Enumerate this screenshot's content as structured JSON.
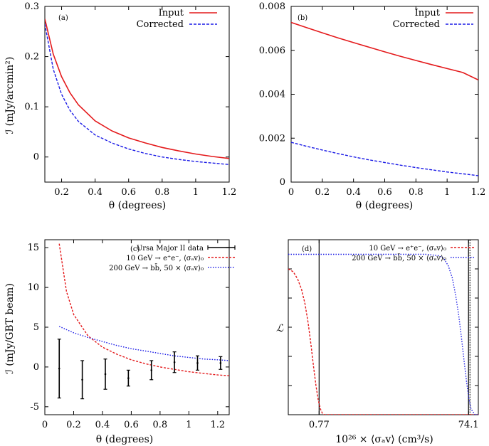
{
  "chart_data": [
    {
      "panel": "a",
      "panel_label": "(a)",
      "type": "line",
      "xlabel": "θ (degrees)",
      "ylabel": "ℐ (mJy/arcmin²)",
      "xlim": [
        0.1,
        1.2
      ],
      "ylim": [
        -0.05,
        0.3
      ],
      "xticks": [
        0.2,
        0.4,
        0.6,
        0.8,
        1,
        1.2
      ],
      "xtick_labels": [
        "0.2",
        "0.4",
        "0.6",
        "0.8",
        "1",
        "1.2"
      ],
      "yticks": [
        0,
        0.1,
        0.2,
        0.3
      ],
      "ytick_labels": [
        "0",
        "0.1",
        "0.2",
        "0.3"
      ],
      "legend": "top-right",
      "series": [
        {
          "name": "Input",
          "color": "#e41a1c",
          "dash": "",
          "x": [
            0.1,
            0.15,
            0.2,
            0.25,
            0.3,
            0.4,
            0.5,
            0.6,
            0.7,
            0.8,
            0.9,
            1.0,
            1.1,
            1.2
          ],
          "y": [
            0.275,
            0.205,
            0.16,
            0.128,
            0.104,
            0.072,
            0.052,
            0.038,
            0.028,
            0.019,
            0.012,
            0.006,
            0.001,
            -0.003
          ]
        },
        {
          "name": "Corrected",
          "color": "#1a1ae6",
          "dash": "4,2",
          "x": [
            0.1,
            0.15,
            0.2,
            0.25,
            0.3,
            0.4,
            0.5,
            0.6,
            0.7,
            0.8,
            0.9,
            1.0,
            1.1,
            1.2
          ],
          "y": [
            0.265,
            0.175,
            0.125,
            0.093,
            0.071,
            0.044,
            0.028,
            0.016,
            0.007,
            0.0,
            -0.005,
            -0.009,
            -0.012,
            -0.015
          ]
        }
      ]
    },
    {
      "panel": "b",
      "panel_label": "(b)",
      "type": "line",
      "xlabel": "θ (degrees)",
      "ylabel": "",
      "xlim": [
        0,
        1.2
      ],
      "ylim": [
        0,
        0.008
      ],
      "xticks": [
        0,
        0.2,
        0.4,
        0.6,
        0.8,
        1,
        1.2
      ],
      "xtick_labels": [
        "0",
        "0.2",
        "0.4",
        "0.6",
        "0.8",
        "1",
        "1.2"
      ],
      "yticks": [
        0,
        0.002,
        0.004,
        0.006,
        0.008
      ],
      "ytick_labels": [
        "0",
        "0.002",
        "0.004",
        "0.006",
        "0.008"
      ],
      "legend": "top-right",
      "series": [
        {
          "name": "Input",
          "color": "#e41a1c",
          "dash": "",
          "x": [
            0,
            0.1,
            0.2,
            0.3,
            0.4,
            0.5,
            0.6,
            0.7,
            0.8,
            0.9,
            1.0,
            1.1,
            1.2
          ],
          "y": [
            0.00727,
            0.00703,
            0.0068,
            0.00657,
            0.00635,
            0.00614,
            0.00593,
            0.00573,
            0.00554,
            0.00535,
            0.00517,
            0.00499,
            0.00465
          ]
        },
        {
          "name": "Corrected",
          "color": "#1a1ae6",
          "dash": "4,2",
          "x": [
            0,
            0.1,
            0.2,
            0.3,
            0.4,
            0.5,
            0.6,
            0.7,
            0.8,
            0.9,
            1.0,
            1.1,
            1.2
          ],
          "y": [
            0.00181,
            0.00163,
            0.00146,
            0.0013,
            0.00115,
            0.00101,
            0.00089,
            0.00077,
            0.00066,
            0.00056,
            0.00046,
            0.00038,
            0.00029
          ]
        }
      ]
    },
    {
      "panel": "c",
      "panel_label": "(c)",
      "type": "line",
      "xlabel": "θ (degrees)",
      "ylabel": "ℐ (mJy/GBT beam)",
      "xlim": [
        0,
        1.28
      ],
      "ylim": [
        -6,
        16
      ],
      "xticks": [
        0,
        0.2,
        0.4,
        0.6,
        0.8,
        1,
        1.2
      ],
      "xtick_labels": [
        "0",
        "0.2",
        "0.4",
        "0.6",
        "0.8",
        "1",
        "1.2"
      ],
      "yticks": [
        -5,
        0,
        5,
        10,
        15
      ],
      "ytick_labels": [
        "-5",
        "0",
        "5",
        "10",
        "15"
      ],
      "legend": "top-right",
      "points": {
        "name": "Ursa Major II data",
        "color": "#000000",
        "x": [
          0.1,
          0.26,
          0.42,
          0.58,
          0.74,
          0.9,
          1.06,
          1.22
        ],
        "y": [
          -0.2,
          -1.6,
          -0.9,
          -1.4,
          -0.4,
          0.6,
          0.5,
          0.5
        ],
        "err": [
          3.7,
          2.4,
          1.9,
          1.0,
          1.2,
          1.3,
          0.9,
          0.8
        ]
      },
      "series": [
        {
          "name": "10 GeV → e⁺e⁻, ⟨σₐv⟩₀",
          "color": "#e41a1c",
          "dash": "3,2",
          "x": [
            0.1,
            0.15,
            0.2,
            0.3,
            0.4,
            0.5,
            0.6,
            0.7,
            0.8,
            0.9,
            1.0,
            1.1,
            1.2,
            1.28
          ],
          "y": [
            15.5,
            9.5,
            6.6,
            3.9,
            2.5,
            1.6,
            0.9,
            0.4,
            0.0,
            -0.3,
            -0.6,
            -0.8,
            -1.0,
            -1.1
          ]
        },
        {
          "name": "200 GeV → bb̄, 50 × ⟨σₐv⟩₀",
          "color": "#1a1ae6",
          "dash": "1.5,2",
          "x": [
            0.1,
            0.2,
            0.3,
            0.4,
            0.5,
            0.6,
            0.7,
            0.8,
            0.9,
            1.0,
            1.1,
            1.2,
            1.28
          ],
          "y": [
            5.1,
            4.3,
            3.7,
            3.2,
            2.7,
            2.3,
            2.0,
            1.7,
            1.4,
            1.2,
            1.0,
            0.9,
            0.8
          ]
        }
      ]
    },
    {
      "panel": "d",
      "panel_label": "(d)",
      "type": "line",
      "xlabel": "10²⁶ × ⟨σₐv⟩ (cm³/s)",
      "ylabel": "ℒ",
      "xscale": "log",
      "xlim": [
        0.3,
        100
      ],
      "ylim": [
        0,
        1.2
      ],
      "xticks": [
        0.77,
        74.1
      ],
      "xtick_labels": [
        "0.77",
        "74.1"
      ],
      "yticks": [
        0.2,
        0.4,
        0.6,
        0.8,
        1.0
      ],
      "ytick_labels": [
        "",
        "",
        "",
        "",
        ""
      ],
      "vlines": [
        0.77,
        74.1
      ],
      "legend": "top-right",
      "series": [
        {
          "name": "10 GeV → e⁺e⁻, ⟨σₐv⟩₀",
          "color": "#e41a1c",
          "dash": "3,2",
          "x": [
            0.3,
            0.35,
            0.4,
            0.45,
            0.5,
            0.55,
            0.6,
            0.65,
            0.7,
            0.75,
            0.8,
            0.85,
            0.9,
            1.0,
            100
          ],
          "y": [
            1.0,
            0.98,
            0.93,
            0.86,
            0.76,
            0.63,
            0.48,
            0.33,
            0.2,
            0.1,
            0.04,
            0.01,
            0.0,
            0.0,
            0.0
          ]
        },
        {
          "name": "200 GeV → bb̄, 50 × ⟨σₐv⟩₀",
          "color": "#1a1ae6",
          "dash": "1.5,2",
          "x": [
            0.3,
            20,
            30,
            35,
            40,
            45,
            50,
            55,
            60,
            65,
            70,
            75,
            80,
            90,
            100
          ],
          "y": [
            1.1,
            1.1,
            1.09,
            1.07,
            1.02,
            0.94,
            0.82,
            0.68,
            0.52,
            0.36,
            0.22,
            0.11,
            0.04,
            0.0,
            0.0
          ]
        }
      ]
    }
  ]
}
